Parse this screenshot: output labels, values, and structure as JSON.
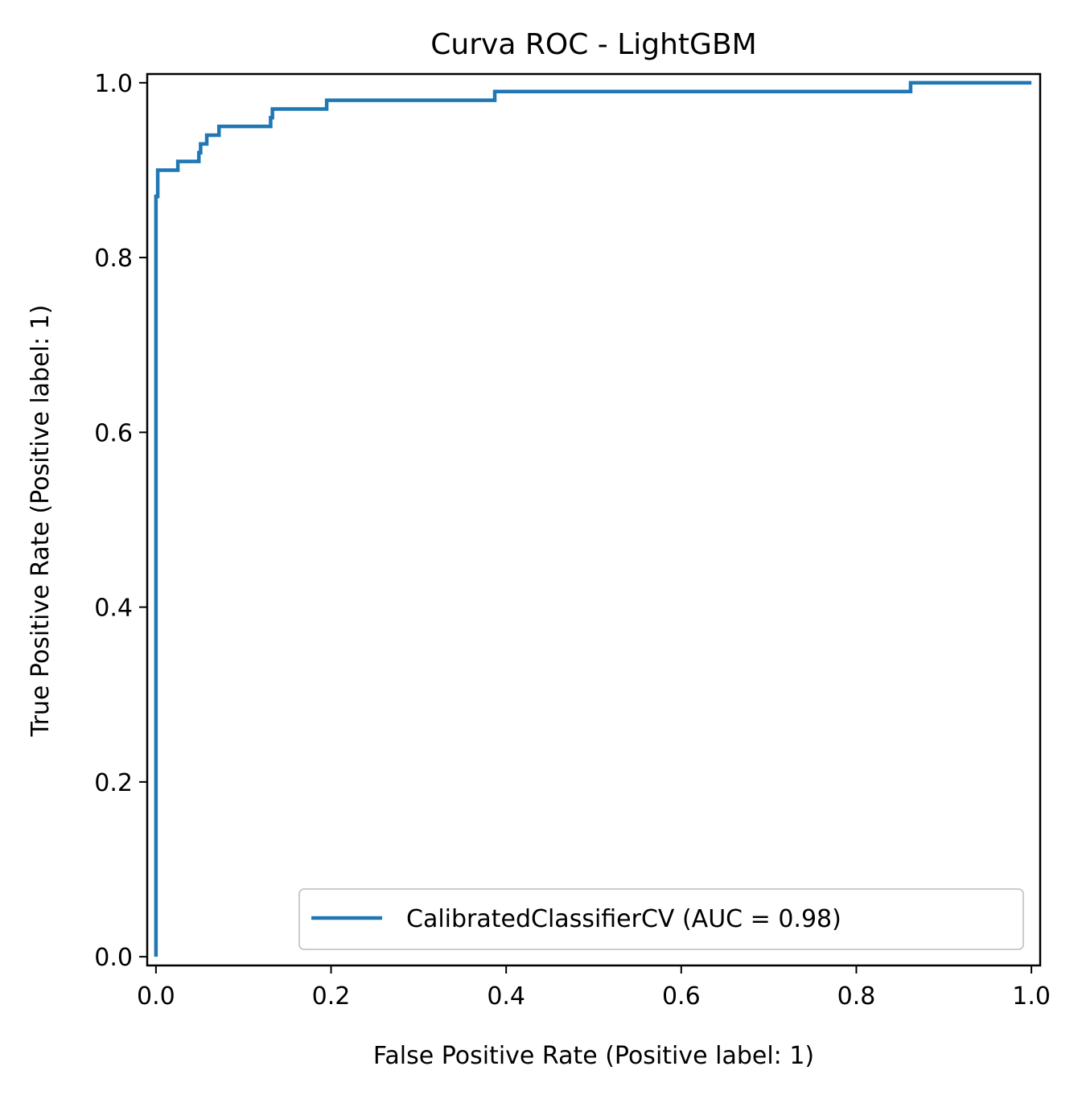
{
  "chart_data": {
    "type": "line",
    "title": "Curva ROC - LightGBM",
    "xlabel": "False Positive Rate (Positive label: 1)",
    "ylabel": "True Positive Rate (Positive label: 1)",
    "xlim": [
      -0.01,
      1.01
    ],
    "ylim": [
      -0.01,
      1.01
    ],
    "xticks": [
      0.0,
      0.2,
      0.4,
      0.6,
      0.8,
      1.0
    ],
    "yticks": [
      0.0,
      0.2,
      0.4,
      0.6,
      0.8,
      1.0
    ],
    "xtick_labels": [
      "0.0",
      "0.2",
      "0.4",
      "0.6",
      "0.8",
      "1.0"
    ],
    "ytick_labels": [
      "0.0",
      "0.2",
      "0.4",
      "0.6",
      "0.8",
      "1.0"
    ],
    "grid": false,
    "legend_position": "lower-right",
    "series": [
      {
        "name": "CalibratedClassifierCV (AUC = 0.98)",
        "color": "#1f77b4",
        "x": [
          0.0,
          0.0,
          0.002,
          0.002,
          0.025,
          0.025,
          0.049,
          0.049,
          0.051,
          0.051,
          0.055,
          0.055,
          0.058,
          0.058,
          0.072,
          0.072,
          0.131,
          0.131,
          0.133,
          0.133,
          0.195,
          0.195,
          0.387,
          0.387,
          0.862,
          0.862,
          1.0
        ],
        "y": [
          0.0,
          0.87,
          0.87,
          0.9,
          0.9,
          0.91,
          0.91,
          0.92,
          0.92,
          0.93,
          0.93,
          0.93,
          0.93,
          0.94,
          0.94,
          0.95,
          0.95,
          0.96,
          0.96,
          0.97,
          0.97,
          0.98,
          0.98,
          0.99,
          0.99,
          1.0,
          1.0
        ]
      }
    ]
  }
}
